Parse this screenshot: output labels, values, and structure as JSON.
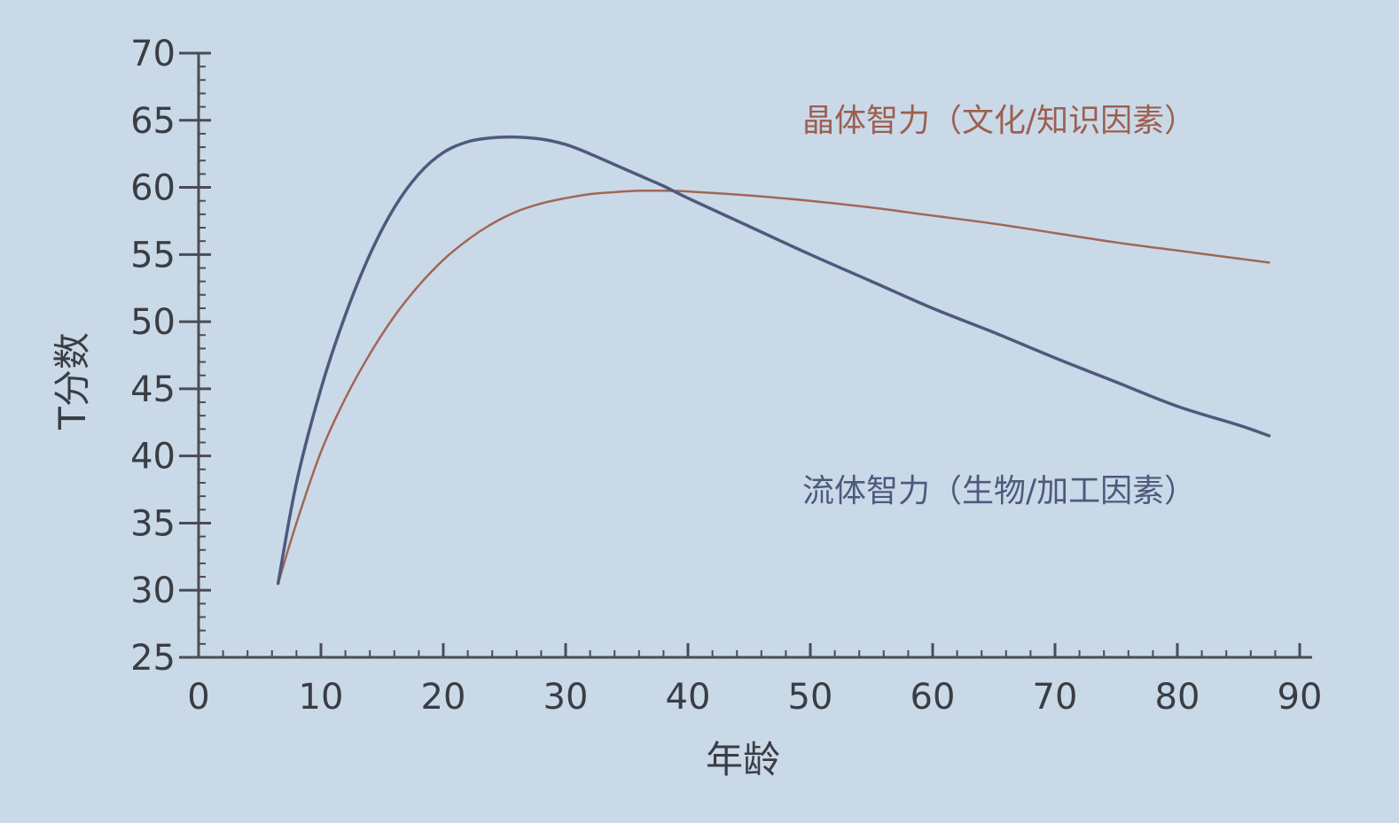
{
  "chart_data": {
    "type": "line",
    "title": "",
    "xlabel": "年龄",
    "ylabel": "T分数",
    "xlim": [
      0,
      90
    ],
    "ylim": [
      25,
      70
    ],
    "xticks": [
      0,
      10,
      20,
      30,
      40,
      50,
      60,
      70,
      80,
      90
    ],
    "yticks": [
      25,
      30,
      35,
      40,
      45,
      50,
      55,
      60,
      65,
      70
    ],
    "grid": false,
    "legend": "inline-labels",
    "series": [
      {
        "name": "晶体智力（文化/知识因素）",
        "color": "#a26656",
        "x": [
          6.5,
          8,
          10,
          12,
          14,
          16,
          18,
          20,
          22,
          24,
          26,
          28,
          30,
          32,
          34,
          36,
          38,
          40,
          45,
          50,
          55,
          60,
          65,
          70,
          75,
          80,
          85,
          87.5
        ],
        "y": [
          30.5,
          35,
          40.3,
          44.3,
          47.6,
          50.4,
          52.7,
          54.6,
          56.1,
          57.3,
          58.2,
          58.8,
          59.2,
          59.5,
          59.65,
          59.75,
          59.75,
          59.7,
          59.4,
          59,
          58.5,
          57.9,
          57.3,
          56.6,
          55.9,
          55.3,
          54.7,
          54.4
        ]
      },
      {
        "name": "流体智力（生物/加工因素）",
        "color": "#4d5a7c",
        "x": [
          6.5,
          8,
          10,
          12,
          14,
          16,
          18,
          20,
          22,
          24,
          26,
          28,
          30,
          32,
          34,
          36,
          38,
          40,
          45,
          50,
          55,
          60,
          65,
          70,
          75,
          80,
          85,
          87.5
        ],
        "y": [
          30.5,
          38,
          45,
          50.5,
          55,
          58.5,
          61,
          62.6,
          63.4,
          63.7,
          63.75,
          63.6,
          63.2,
          62.5,
          61.7,
          60.9,
          60.1,
          59.2,
          57.1,
          55,
          53,
          51,
          49.2,
          47.3,
          45.5,
          43.7,
          42.3,
          41.5
        ]
      }
    ]
  },
  "series_labels": {
    "crystallized": "晶体智力（文化/知识因素）",
    "fluid": "流体智力（生物/加工因素）"
  }
}
